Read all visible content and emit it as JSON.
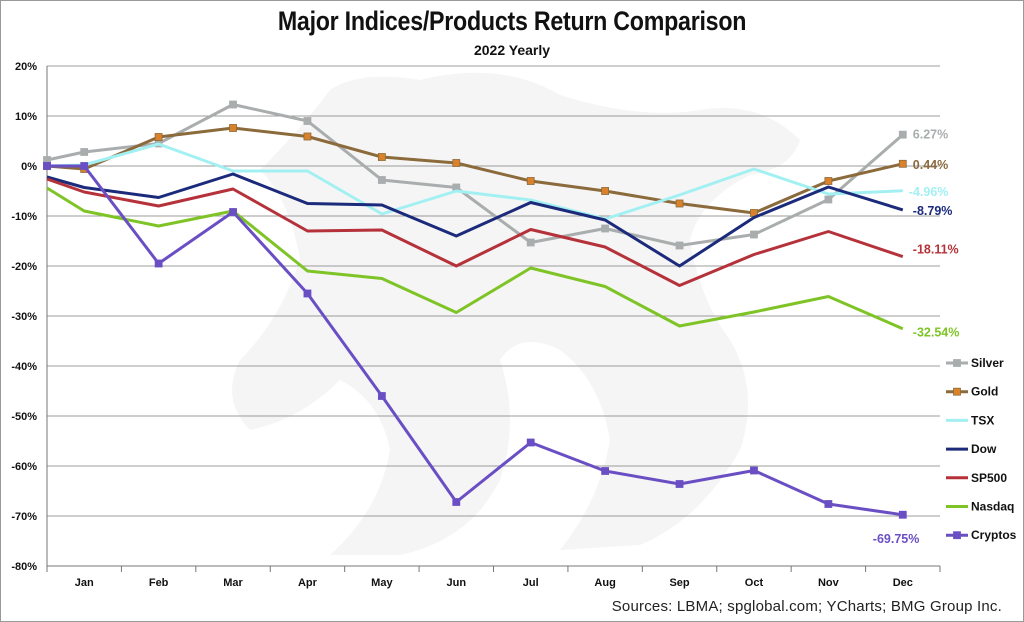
{
  "chart_data": {
    "type": "line",
    "title": "Major Indices/Products Return Comparison",
    "subtitle": "2022 Yearly",
    "source": "Sources: LBMA; spglobal.com; YCharts; BMG Group Inc.",
    "categories": [
      "Jan",
      "Feb",
      "Mar",
      "Apr",
      "May",
      "Jun",
      "Jul",
      "Aug",
      "Sep",
      "Oct",
      "Nov",
      "Dec"
    ],
    "ylim": [
      -80,
      20
    ],
    "yticks": [
      20,
      10,
      0,
      -10,
      -20,
      -30,
      -40,
      -50,
      -60,
      -70,
      -80
    ],
    "ytick_labels": [
      "20%",
      "10%",
      "0%",
      "-10%",
      "-20%",
      "-30%",
      "-40%",
      "-50%",
      "-60%",
      "-70%",
      "-80%"
    ],
    "grid": true,
    "legend_position": "right",
    "series": [
      {
        "name": "Silver",
        "color": "#a9adae",
        "marker": "square",
        "start": 1.2,
        "values": [
          2.8,
          4.5,
          12.3,
          9.0,
          -2.8,
          -4.3,
          -15.3,
          -12.5,
          -15.9,
          -13.7,
          -6.7,
          6.27
        ],
        "end_label": "6.27%"
      },
      {
        "name": "Gold",
        "color": "#8b6a3b",
        "marker": "square",
        "marker_fill": "#d9822b",
        "start": 0.0,
        "values": [
          -0.6,
          5.8,
          7.6,
          5.9,
          1.8,
          0.6,
          -3.0,
          -5.0,
          -7.5,
          -9.4,
          -3.0,
          0.44
        ],
        "end_label": "0.44%"
      },
      {
        "name": "TSX",
        "color": "#a3f0f3",
        "marker": "none",
        "start": 0.0,
        "values": [
          0.2,
          4.4,
          -1.0,
          -1.0,
          -9.6,
          -5.0,
          -6.8,
          -10.6,
          -5.8,
          -0.6,
          -5.6,
          -4.96
        ],
        "end_label": "-4.96%"
      },
      {
        "name": "Dow",
        "color": "#1b2a7a",
        "marker": "none",
        "start": -2.2,
        "values": [
          -4.3,
          -6.3,
          -1.6,
          -7.5,
          -7.8,
          -14.0,
          -7.3,
          -10.8,
          -20.0,
          -10.3,
          -4.2,
          -8.79
        ],
        "end_label": "-8.79%"
      },
      {
        "name": "SP500",
        "color": "#b5323a",
        "marker": "none",
        "start": -2.6,
        "values": [
          -5.2,
          -8.0,
          -4.6,
          -13.0,
          -12.8,
          -20.0,
          -12.7,
          -16.2,
          -23.9,
          -17.7,
          -13.1,
          -18.11
        ],
        "end_label": "-18.11%"
      },
      {
        "name": "Nasdaq",
        "color": "#7fc427",
        "marker": "none",
        "start": -4.4,
        "values": [
          -9.0,
          -12.0,
          -9.0,
          -21.0,
          -22.5,
          -29.3,
          -20.4,
          -24.1,
          -32.0,
          -29.2,
          -26.1,
          -32.54
        ],
        "end_label": "-32.54%"
      },
      {
        "name": "Cryptos",
        "color": "#6a4fc4",
        "marker": "square",
        "start": 0.0,
        "values": [
          0.0,
          -19.5,
          -9.2,
          -25.5,
          -46.0,
          -67.2,
          -55.3,
          -61.0,
          -63.6,
          -60.9,
          -67.6,
          -69.75
        ],
        "end_label": "-69.75%"
      }
    ]
  }
}
